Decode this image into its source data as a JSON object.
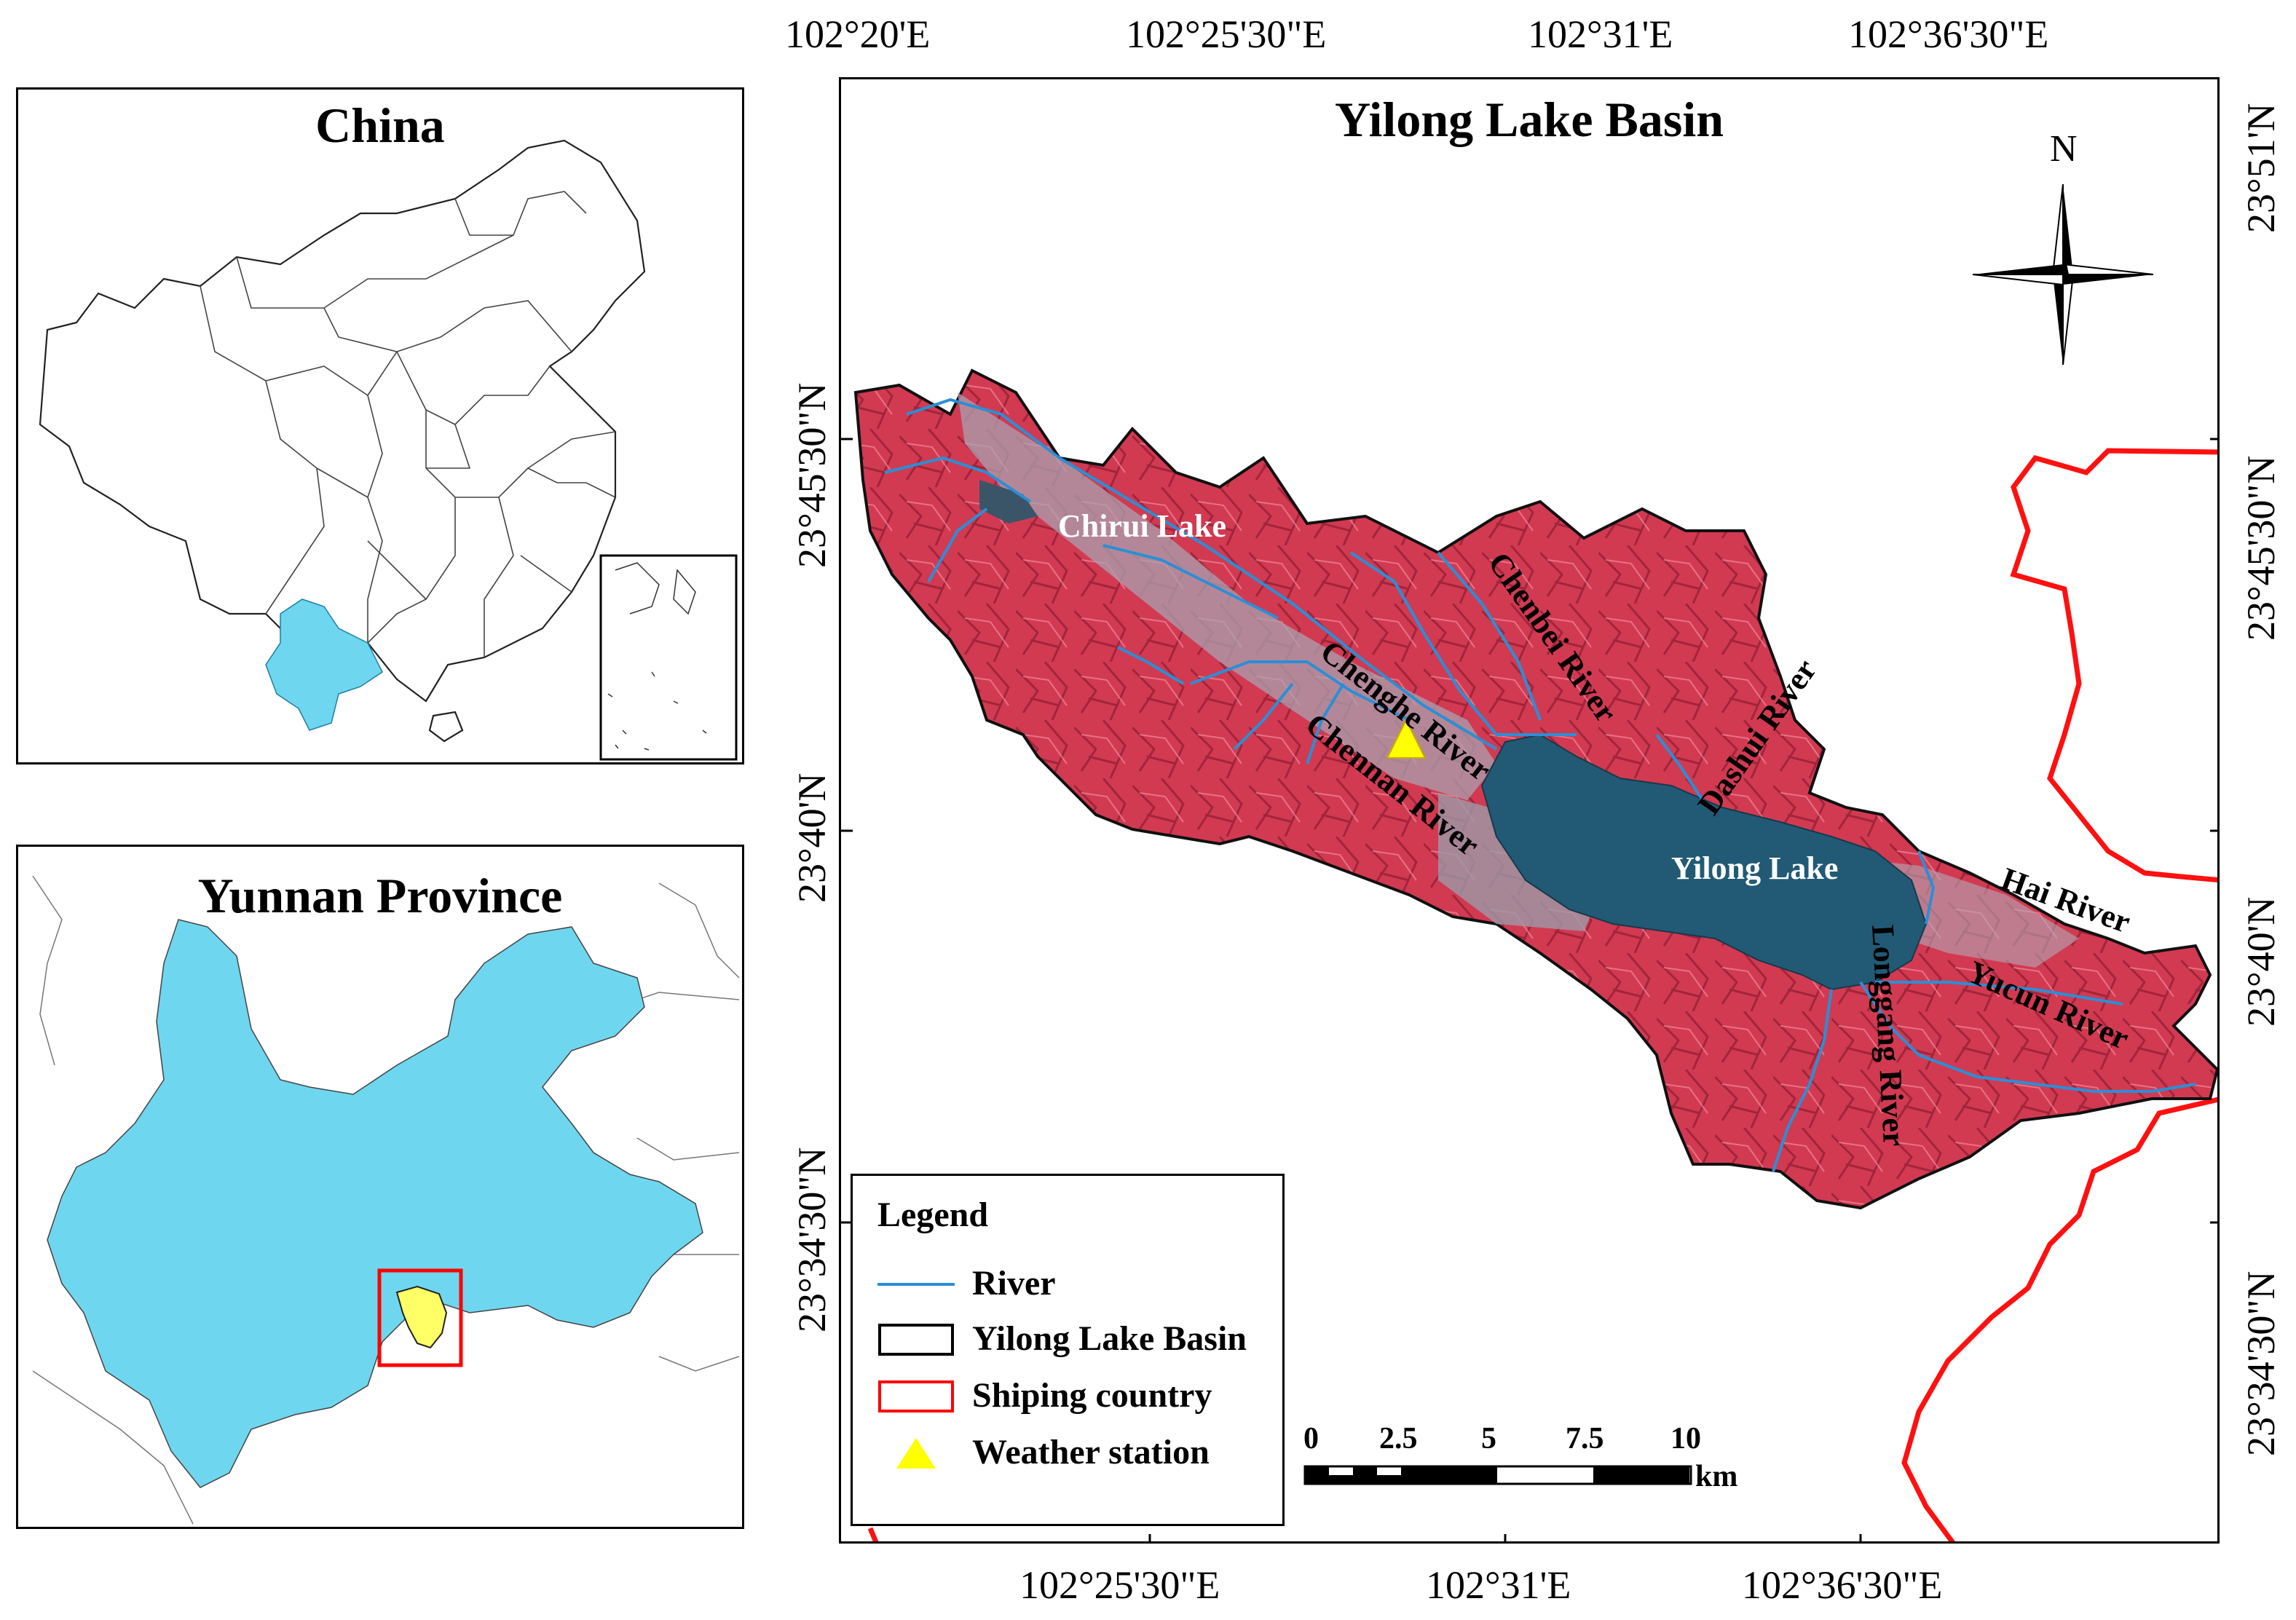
{
  "inset_china": {
    "title": "China",
    "highlight_color": "#6fd6ef"
  },
  "inset_yunnan": {
    "title": "Yunnan Province",
    "fill_color": "#6fd6ef",
    "basin_fill": "#ffff66",
    "box_color": "#ff0000"
  },
  "main_map": {
    "title": "Yilong Lake Basin",
    "top_longitudes": [
      "102°20'E",
      "102°25'30\"E",
      "102°31'E",
      "102°36'30\"E"
    ],
    "bottom_longitudes": [
      "102°25'30\"E",
      "102°31'E",
      "102°36'30\"E"
    ],
    "left_latitudes": [
      "23°45'30\"N",
      "23°40'N",
      "23°34'30\"N"
    ],
    "right_latitudes": [
      "23°51'N",
      "23°45'30\"N",
      "23°40'N",
      "23°34'30\"N"
    ],
    "north_arrow_label": "N",
    "labels": {
      "chirui_lake": "Chirui Lake",
      "yilong_lake": "Yilong Lake",
      "chenghe_river": "Chenghe River",
      "chenbei_river": "Chenbei River",
      "chennan_river": "Chennan River",
      "dashui_river": "Dashui River",
      "hai_river": "Hai River",
      "yucun_river": "Yucun River",
      "longgang_river": "Longgang River"
    }
  },
  "legend": {
    "title": "Legend",
    "items": [
      {
        "label": "River",
        "symbol": "line",
        "color": "#2a8fd6"
      },
      {
        "label": "Yilong Lake Basin",
        "symbol": "box",
        "color": "#000000"
      },
      {
        "label": "Shiping country",
        "symbol": "box",
        "color": "#ff0000"
      },
      {
        "label": "Weather station",
        "symbol": "triangle",
        "color": "#ffff00"
      }
    ]
  },
  "scale_bar": {
    "ticks": [
      "0",
      "2.5",
      "5",
      "7.5",
      "10"
    ],
    "unit": "km"
  }
}
